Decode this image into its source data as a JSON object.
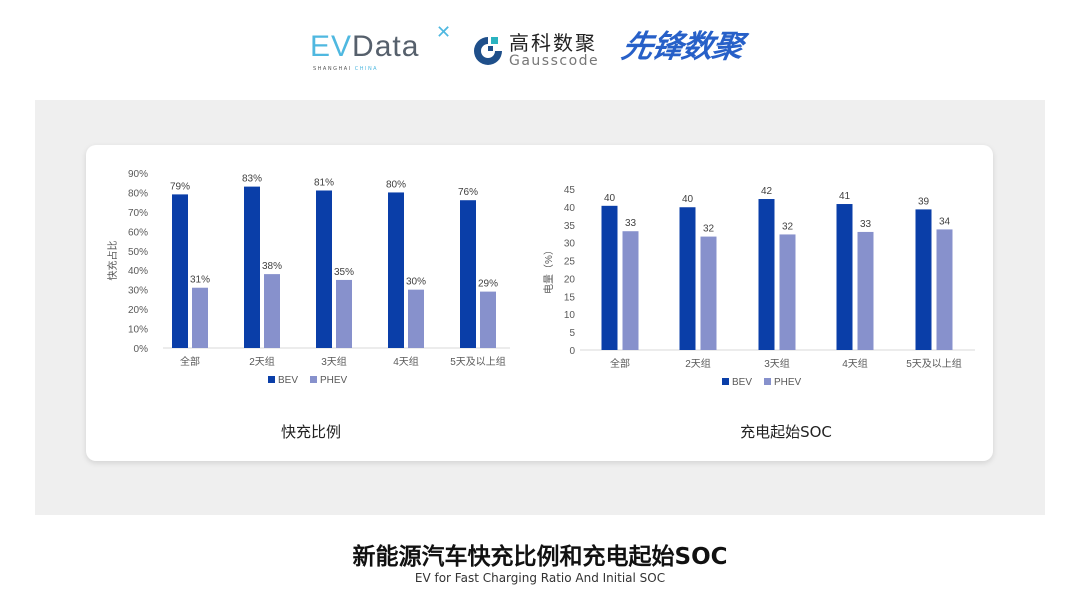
{
  "logos": {
    "evdata": {
      "text_ev": "EV",
      "text_data": "Data",
      "sub": "SHANGHAI",
      "sub_accent": "CHINA"
    },
    "gausscode": {
      "cn": "高科数聚",
      "en": "Gausscode"
    },
    "xianfeng": {
      "cn": "先锋数聚"
    }
  },
  "colors": {
    "BEV": "#0a3ea8",
    "PHEV": "#8791cc",
    "panel": "#efefef",
    "axis_text": "#595959"
  },
  "chart_data": [
    {
      "type": "bar",
      "title": "快充比例",
      "ylabel": "快充占比",
      "xlabel": "",
      "categories": [
        "全部",
        "2天组",
        "3天组",
        "4天组",
        "5天及以上组"
      ],
      "yticks": [
        "0%",
        "10%",
        "20%",
        "30%",
        "40%",
        "50%",
        "60%",
        "70%",
        "80%",
        "90%"
      ],
      "ylim": [
        0,
        90
      ],
      "grid": false,
      "legend": "bottom",
      "series": [
        {
          "name": "BEV",
          "values": [
            79,
            83,
            81,
            80,
            76
          ],
          "labels": [
            "79%",
            "83%",
            "81%",
            "80%",
            "76%"
          ]
        },
        {
          "name": "PHEV",
          "values": [
            31,
            38,
            35,
            30,
            29
          ],
          "labels": [
            "31%",
            "38%",
            "35%",
            "30%",
            "29%"
          ]
        }
      ]
    },
    {
      "type": "bar",
      "title": "充电起始SOC",
      "ylabel": "电量（%）",
      "xlabel": "",
      "categories": [
        "全部",
        "2天组",
        "3天组",
        "4天组",
        "5天及以上组"
      ],
      "yticks": [
        "0",
        "5",
        "10",
        "15",
        "20",
        "25",
        "30",
        "35",
        "40",
        "45"
      ],
      "ylim": [
        0,
        45
      ],
      "grid": false,
      "legend": "bottom",
      "series": [
        {
          "name": "BEV",
          "values": [
            40.3,
            39.9,
            42.2,
            40.8,
            39.3
          ],
          "labels": [
            "40",
            "40",
            "42",
            "41",
            "39"
          ]
        },
        {
          "name": "PHEV",
          "values": [
            33.2,
            31.7,
            32.3,
            33.0,
            33.7
          ],
          "labels": [
            "33",
            "32",
            "32",
            "33",
            "34"
          ]
        }
      ]
    }
  ],
  "footer": {
    "title": "新能源汽车快充比例和充电起始SOC",
    "subtitle": "EV for Fast Charging Ratio And Initial SOC"
  }
}
